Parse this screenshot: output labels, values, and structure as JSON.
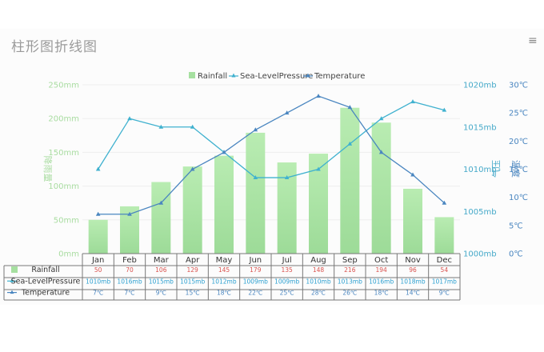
{
  "title": "柱形图折线图",
  "menu_icon": "menu-icon",
  "colors": {
    "rainfall": "#a6e0a0",
    "sea_level": "#3fb1cf",
    "temperature": "#4a86c0"
  },
  "chart_data": {
    "type": "bar",
    "title": "柱形图折线图",
    "categories": [
      "Jan",
      "Feb",
      "Mar",
      "Apr",
      "May",
      "Jun",
      "Jul",
      "Aug",
      "Sep",
      "Oct",
      "Nov",
      "Dec"
    ],
    "legend": {
      "position": "top-center",
      "entries": [
        "Rainfall",
        "Sea-LevelPressure",
        "Temperature"
      ]
    },
    "series": [
      {
        "name": "Rainfall",
        "type": "bar",
        "axis": "left",
        "values": [
          50,
          70,
          106,
          129,
          145,
          179,
          135,
          148,
          216,
          194,
          96,
          54
        ]
      },
      {
        "name": "Sea-LevelPressure",
        "type": "line",
        "axis": "right-inner",
        "values": [
          1010,
          1016,
          1015,
          1015,
          1012,
          1009,
          1009,
          1010,
          1013,
          1016,
          1018,
          1017
        ]
      },
      {
        "name": "Temperature",
        "type": "line",
        "axis": "right-outer",
        "values": [
          7,
          7,
          9,
          15,
          18,
          22,
          25,
          28,
          26,
          18,
          14,
          9
        ]
      }
    ],
    "y_axes": [
      {
        "label": "降雨量",
        "range": [
          0,
          250
        ],
        "ticks": [
          "0mm",
          "50mm",
          "100mm",
          "150mm",
          "200mm",
          "250mm"
        ]
      },
      {
        "label": "气压",
        "range": [
          1000,
          1020
        ],
        "ticks": [
          "1000mb",
          "1005mb",
          "1010mb",
          "1015mb",
          "1020mb"
        ]
      },
      {
        "label": "温度",
        "range": [
          0,
          30
        ],
        "ticks": [
          "0℃",
          "5℃",
          "10℃",
          "15℃",
          "20℃",
          "25℃",
          "30℃"
        ]
      }
    ],
    "grid": true,
    "data_table": {
      "rows": [
        {
          "label": "Rainfall",
          "cells": [
            "50",
            "70",
            "106",
            "129",
            "145",
            "179",
            "135",
            "148",
            "216",
            "194",
            "96",
            "54"
          ]
        },
        {
          "label": "Sea-LevelPressure",
          "cells": [
            "1010mb",
            "1016mb",
            "1015mb",
            "1015mb",
            "1012mb",
            "1009mb",
            "1009mb",
            "1010mb",
            "1013mb",
            "1016mb",
            "1018mb",
            "1017mb"
          ]
        },
        {
          "label": "Temperature",
          "cells": [
            "7℃",
            "7℃",
            "9℃",
            "15℃",
            "18℃",
            "22℃",
            "25℃",
            "28℃",
            "26℃",
            "18℃",
            "14℃",
            "9℃"
          ]
        }
      ]
    }
  }
}
